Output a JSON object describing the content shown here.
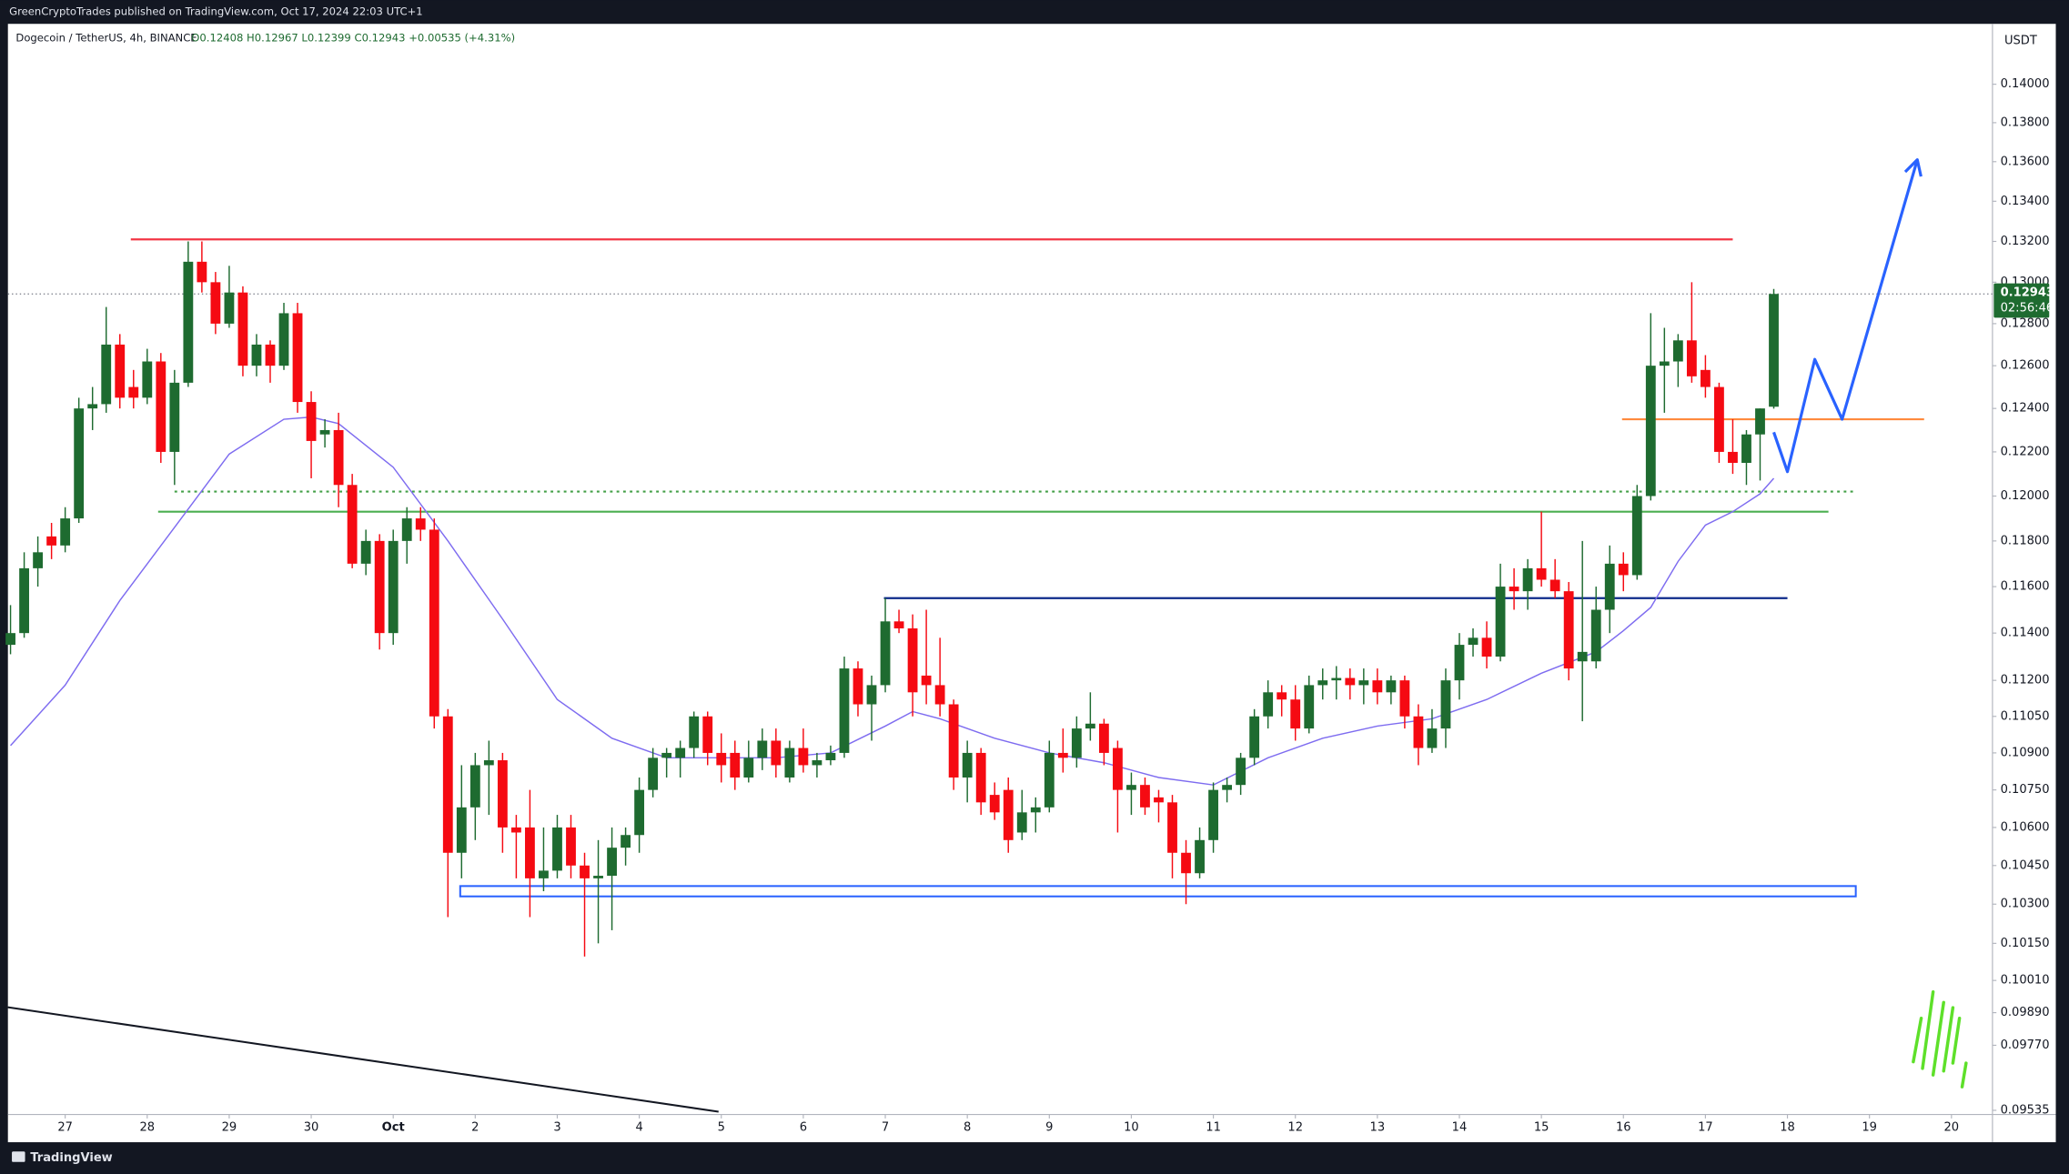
{
  "header": {
    "publisher": "GreenCryptoTrades published on TradingView.com, Oct 17, 2024 22:03 UTC+1"
  },
  "footer": {
    "brand": "TradingView"
  },
  "chart_data": {
    "type": "candlestick",
    "title": "Dogecoin / TetherUS, 4h, BINANCE",
    "ohlc_label": "O0.12408 H0.12967 L0.12399 C0.12943 +0.00535 (+4.31%)",
    "currency": "USDT",
    "last_price_label": "0.12943",
    "countdown": "02:56:46",
    "log_scale": true,
    "up_color": "#1e6b30",
    "down_color": "#f50a12",
    "xlim": [
      -0.19,
      145.0
    ],
    "ylim": [
      0.0952,
      0.1432
    ],
    "xticks": [
      {
        "value": 4,
        "label": "27"
      },
      {
        "value": 10,
        "label": "28"
      },
      {
        "value": 16,
        "label": "29"
      },
      {
        "value": 22,
        "label": "30"
      },
      {
        "value": 28,
        "label": "Oct"
      },
      {
        "value": 34,
        "label": "2"
      },
      {
        "value": 40,
        "label": "3"
      },
      {
        "value": 46,
        "label": "4"
      },
      {
        "value": 52,
        "label": "5"
      },
      {
        "value": 58,
        "label": "6"
      },
      {
        "value": 64,
        "label": "7"
      },
      {
        "value": 70,
        "label": "8"
      },
      {
        "value": 76,
        "label": "9"
      },
      {
        "value": 82,
        "label": "10"
      },
      {
        "value": 88,
        "label": "11"
      },
      {
        "value": 94,
        "label": "12"
      },
      {
        "value": 100,
        "label": "13"
      },
      {
        "value": 106,
        "label": "14"
      },
      {
        "value": 112,
        "label": "15"
      },
      {
        "value": 118,
        "label": "16"
      },
      {
        "value": 124,
        "label": "17"
      },
      {
        "value": 130,
        "label": "18"
      },
      {
        "value": 136,
        "label": "19"
      },
      {
        "value": 142,
        "label": "20"
      }
    ],
    "yticks": [
      {
        "value": 0.14,
        "label": "0.14000"
      },
      {
        "value": 0.138,
        "label": "0.13800"
      },
      {
        "value": 0.136,
        "label": "0.13600"
      },
      {
        "value": 0.134,
        "label": "0.13400"
      },
      {
        "value": 0.132,
        "label": "0.13200"
      },
      {
        "value": 0.13,
        "label": "0.13000"
      },
      {
        "value": 0.128,
        "label": "0.12800"
      },
      {
        "value": 0.126,
        "label": "0.12600"
      },
      {
        "value": 0.124,
        "label": "0.12400"
      },
      {
        "value": 0.122,
        "label": "0.12200"
      },
      {
        "value": 0.12,
        "label": "0.12000"
      },
      {
        "value": 0.118,
        "label": "0.11800"
      },
      {
        "value": 0.116,
        "label": "0.11600"
      },
      {
        "value": 0.114,
        "label": "0.11400"
      },
      {
        "value": 0.112,
        "label": "0.11200"
      },
      {
        "value": 0.1105,
        "label": "0.11050"
      },
      {
        "value": 0.109,
        "label": "0.10900"
      },
      {
        "value": 0.1075,
        "label": "0.10750"
      },
      {
        "value": 0.106,
        "label": "0.10600"
      },
      {
        "value": 0.1045,
        "label": "0.10450"
      },
      {
        "value": 0.103,
        "label": "0.10300"
      },
      {
        "value": 0.1015,
        "label": "0.10150"
      },
      {
        "value": 0.1001,
        "label": "0.10010"
      },
      {
        "value": 0.0989,
        "label": "0.09890"
      },
      {
        "value": 0.0977,
        "label": "0.09770"
      },
      {
        "value": 0.09535,
        "label": "0.09535"
      }
    ],
    "x": [
      0,
      1,
      2,
      3,
      4,
      5,
      6,
      7,
      8,
      9,
      10,
      11,
      12,
      13,
      14,
      15,
      16,
      17,
      18,
      19,
      20,
      21,
      22,
      23,
      24,
      25,
      26,
      27,
      28,
      29,
      30,
      31,
      32,
      33,
      34,
      35,
      36,
      37,
      38,
      39,
      40,
      41,
      42,
      43,
      44,
      45,
      46,
      47,
      48,
      49,
      50,
      51,
      52,
      53,
      54,
      55,
      56,
      57,
      58,
      59,
      60,
      61,
      62,
      63,
      64,
      65,
      66,
      67,
      68,
      69,
      70,
      71,
      72,
      73,
      74,
      75,
      76,
      77,
      78,
      79,
      80,
      81,
      82,
      83,
      84,
      85,
      86,
      87,
      88,
      89,
      90,
      91,
      92,
      93,
      94,
      95,
      96,
      97,
      98,
      99,
      100,
      101,
      102,
      103,
      104,
      105,
      106,
      107,
      108,
      109,
      110,
      111,
      112,
      113,
      114,
      115,
      116,
      117,
      118,
      119,
      120,
      121,
      122,
      123,
      124,
      125,
      126,
      127,
      128,
      129
    ],
    "open": [
      0.1135,
      0.114,
      0.1168,
      0.1182,
      0.1178,
      0.119,
      0.124,
      0.1242,
      0.127,
      0.125,
      0.1245,
      0.1262,
      0.122,
      0.1252,
      0.131,
      0.13,
      0.128,
      0.1295,
      0.126,
      0.127,
      0.126,
      0.1285,
      0.1243,
      0.1228,
      0.123,
      0.1205,
      0.117,
      0.118,
      0.114,
      0.118,
      0.119,
      0.1185,
      0.1105,
      0.105,
      0.1068,
      0.1085,
      0.1087,
      0.106,
      0.106,
      0.104,
      0.1043,
      0.106,
      0.1045,
      0.104,
      0.1041,
      0.1052,
      0.1057,
      0.1075,
      0.1088,
      0.1088,
      0.1092,
      0.1105,
      0.109,
      0.109,
      0.108,
      0.1088,
      0.1095,
      0.108,
      0.1092,
      0.1085,
      0.1087,
      0.109,
      0.1125,
      0.111,
      0.1118,
      0.1145,
      0.1142,
      0.1122,
      0.1118,
      0.111,
      0.108,
      0.109,
      0.1073,
      0.1075,
      0.1058,
      0.1066,
      0.1068,
      0.109,
      0.1088,
      0.11,
      0.1102,
      0.1092,
      0.1075,
      0.1077,
      0.1072,
      0.107,
      0.105,
      0.1042,
      0.1055,
      0.1075,
      0.1077,
      0.1088,
      0.1105,
      0.1115,
      0.1112,
      0.11,
      0.1118,
      0.112,
      0.1121,
      0.1118,
      0.112,
      0.1115,
      0.112,
      0.1105,
      0.1092,
      0.11,
      0.112,
      0.1135,
      0.1138,
      0.113,
      0.116,
      0.1158,
      0.1168,
      0.1163,
      0.1158,
      0.1128,
      0.1128,
      0.115,
      0.117,
      0.1165,
      0.12,
      0.126,
      0.1262,
      0.1272,
      0.1258,
      0.125,
      0.122,
      0.1215,
      0.1228,
      0.12408
    ],
    "high": [
      0.1152,
      0.1175,
      0.1182,
      0.1188,
      0.1195,
      0.1245,
      0.125,
      0.1288,
      0.1275,
      0.1258,
      0.1268,
      0.1266,
      0.1258,
      0.132,
      0.132,
      0.1305,
      0.1308,
      0.1298,
      0.1275,
      0.1272,
      0.129,
      0.129,
      0.1248,
      0.1235,
      0.1238,
      0.121,
      0.1185,
      0.1183,
      0.1185,
      0.1195,
      0.1195,
      0.119,
      0.1108,
      0.1085,
      0.109,
      0.1095,
      0.109,
      0.1065,
      0.1075,
      0.106,
      0.1065,
      0.1065,
      0.105,
      0.1055,
      0.106,
      0.106,
      0.108,
      0.1092,
      0.1092,
      0.1095,
      0.1107,
      0.1107,
      0.1098,
      0.1095,
      0.1095,
      0.11,
      0.11,
      0.1095,
      0.11,
      0.109,
      0.1093,
      0.113,
      0.1128,
      0.1122,
      0.1155,
      0.115,
      0.1148,
      0.115,
      0.1138,
      0.1112,
      0.1095,
      0.1092,
      0.1078,
      0.108,
      0.1075,
      0.1072,
      0.1095,
      0.11,
      0.1105,
      0.1115,
      0.1104,
      0.1095,
      0.1082,
      0.108,
      0.1075,
      0.1073,
      0.1055,
      0.106,
      0.1078,
      0.108,
      0.109,
      0.1108,
      0.112,
      0.1118,
      0.1118,
      0.1122,
      0.1125,
      0.1126,
      0.1125,
      0.1125,
      0.1125,
      0.1122,
      0.1122,
      0.111,
      0.1108,
      0.1125,
      0.114,
      0.1142,
      0.1145,
      0.117,
      0.1168,
      0.1172,
      0.1193,
      0.1172,
      0.1162,
      0.118,
      0.116,
      0.1178,
      0.1175,
      0.1205,
      0.1285,
      0.1278,
      0.1275,
      0.13,
      0.1265,
      0.1252,
      0.1235,
      0.123,
      0.124,
      0.12967
    ],
    "low": [
      0.1131,
      0.1138,
      0.116,
      0.1172,
      0.1175,
      0.1188,
      0.123,
      0.1238,
      0.124,
      0.124,
      0.1242,
      0.1215,
      0.1205,
      0.125,
      0.1295,
      0.1275,
      0.1278,
      0.1255,
      0.1255,
      0.1252,
      0.1258,
      0.1238,
      0.1208,
      0.1222,
      0.1195,
      0.1168,
      0.1165,
      0.1133,
      0.1135,
      0.117,
      0.118,
      0.11,
      0.1025,
      0.104,
      0.1055,
      0.1065,
      0.105,
      0.104,
      0.1025,
      0.1035,
      0.104,
      0.104,
      0.101,
      0.1015,
      0.102,
      0.1045,
      0.105,
      0.1072,
      0.108,
      0.108,
      0.1088,
      0.1085,
      0.1078,
      0.1075,
      0.1078,
      0.1083,
      0.108,
      0.1078,
      0.1082,
      0.108,
      0.1085,
      0.1088,
      0.1105,
      0.1095,
      0.1115,
      0.114,
      0.1105,
      0.111,
      0.1105,
      0.1075,
      0.107,
      0.1065,
      0.1063,
      0.105,
      0.1055,
      0.1058,
      0.1066,
      0.1082,
      0.1084,
      0.1095,
      0.1085,
      0.1058,
      0.1065,
      0.1065,
      0.1062,
      0.104,
      0.103,
      0.104,
      0.105,
      0.107,
      0.1073,
      0.1085,
      0.11,
      0.1105,
      0.1095,
      0.1098,
      0.1112,
      0.1112,
      0.1112,
      0.111,
      0.111,
      0.111,
      0.11,
      0.1085,
      0.109,
      0.1092,
      0.1112,
      0.113,
      0.1125,
      0.1128,
      0.115,
      0.115,
      0.116,
      0.1155,
      0.112,
      0.1103,
      0.1125,
      0.114,
      0.1158,
      0.1163,
      0.1198,
      0.1238,
      0.125,
      0.1252,
      0.1245,
      0.1215,
      0.121,
      0.1205,
      0.1207,
      0.12399
    ],
    "close": [
      0.114,
      0.1168,
      0.1175,
      0.1178,
      0.119,
      0.124,
      0.1242,
      0.127,
      0.1245,
      0.1245,
      0.1262,
      0.122,
      0.1252,
      0.131,
      0.13,
      0.128,
      0.1295,
      0.126,
      0.127,
      0.126,
      0.1285,
      0.1243,
      0.1225,
      0.123,
      0.1205,
      0.117,
      0.118,
      0.114,
      0.118,
      0.119,
      0.1185,
      0.1105,
      0.105,
      0.1068,
      0.1085,
      0.1087,
      0.106,
      0.1058,
      0.104,
      0.1043,
      0.106,
      0.1045,
      0.104,
      0.1041,
      0.1052,
      0.1057,
      0.1075,
      0.1088,
      0.109,
      0.1092,
      0.1105,
      0.109,
      0.1085,
      0.108,
      0.1088,
      0.1095,
      0.1085,
      0.1092,
      0.1085,
      0.1087,
      0.109,
      0.1125,
      0.111,
      0.1118,
      0.1145,
      0.1142,
      0.1115,
      0.1118,
      0.111,
      0.108,
      0.109,
      0.107,
      0.1066,
      0.1055,
      0.1066,
      0.1068,
      0.109,
      0.1088,
      0.11,
      0.1102,
      0.109,
      0.1075,
      0.1077,
      0.1068,
      0.107,
      0.105,
      0.1042,
      0.1055,
      0.1075,
      0.1077,
      0.1088,
      0.1105,
      0.1115,
      0.1112,
      0.11,
      0.1118,
      0.112,
      0.1121,
      0.1118,
      0.112,
      0.1115,
      0.112,
      0.1105,
      0.1092,
      0.11,
      0.112,
      0.1135,
      0.1138,
      0.113,
      0.116,
      0.1158,
      0.1168,
      0.1163,
      0.1158,
      0.1125,
      0.1132,
      0.115,
      0.117,
      0.1165,
      0.12,
      0.126,
      0.1262,
      0.1272,
      0.1255,
      0.125,
      0.122,
      0.1215,
      0.1228,
      0.124,
      0.12943
    ],
    "ma": {
      "color": "#7e6cf0",
      "x": [
        0,
        4,
        8,
        12,
        16,
        20,
        22,
        24,
        28,
        32,
        36,
        40,
        44,
        48,
        52,
        56,
        60,
        64,
        66,
        68,
        72,
        76,
        80,
        84,
        88,
        92,
        96,
        100,
        104,
        108,
        112,
        116,
        118,
        120,
        122,
        124,
        126,
        128,
        129
      ],
      "values": [
        0.1093,
        0.1118,
        0.1154,
        0.1186,
        0.1219,
        0.1235,
        0.1236,
        0.1233,
        0.1213,
        0.118,
        0.1146,
        0.1112,
        0.1096,
        0.1088,
        0.1088,
        0.1088,
        0.109,
        0.1101,
        0.1107,
        0.1104,
        0.1096,
        0.109,
        0.1086,
        0.108,
        0.1077,
        0.1088,
        0.1096,
        0.1101,
        0.1104,
        0.1112,
        0.1123,
        0.1132,
        0.1141,
        0.1151,
        0.1171,
        0.1187,
        0.1193,
        0.1201,
        0.1208
      ]
    },
    "drawings": [
      {
        "kind": "hline",
        "price": 0.1321,
        "x": [
          8.8,
          126.0
        ],
        "color": "#f23645",
        "style": "solid"
      },
      {
        "kind": "hline",
        "price": 0.1202,
        "x": [
          12.0,
          134.9
        ],
        "color": "#43a047",
        "style": "dotted"
      },
      {
        "kind": "hline",
        "price": 0.1193,
        "x": [
          10.8,
          133.0
        ],
        "color": "#4caf50",
        "style": "solid"
      },
      {
        "kind": "hline",
        "price": 0.1155,
        "x": [
          63.9,
          130.0
        ],
        "color": "#0d2a8a",
        "style": "solid"
      },
      {
        "kind": "hline",
        "price": 0.1235,
        "x": [
          117.9,
          140.0
        ],
        "color": "#ff8a3d",
        "style": "solid"
      },
      {
        "kind": "rect",
        "price": [
          0.1033,
          0.1037
        ],
        "x": [
          32.9,
          135.0
        ],
        "color": "#2962ff",
        "style": "solid"
      },
      {
        "kind": "path",
        "points": [
          [
            -0.2,
            0.0991
          ],
          [
            51.8,
            0.0953
          ]
        ],
        "color": "#131722",
        "style": "solid"
      },
      {
        "kind": "arrow",
        "points": [
          [
            129.0,
            0.1229
          ],
          [
            130.0,
            0.1211
          ],
          [
            132.0,
            0.1263
          ],
          [
            134.0,
            0.1235
          ],
          [
            139.5,
            0.1361
          ]
        ],
        "color": "#2962ff",
        "style": "solid"
      }
    ]
  }
}
